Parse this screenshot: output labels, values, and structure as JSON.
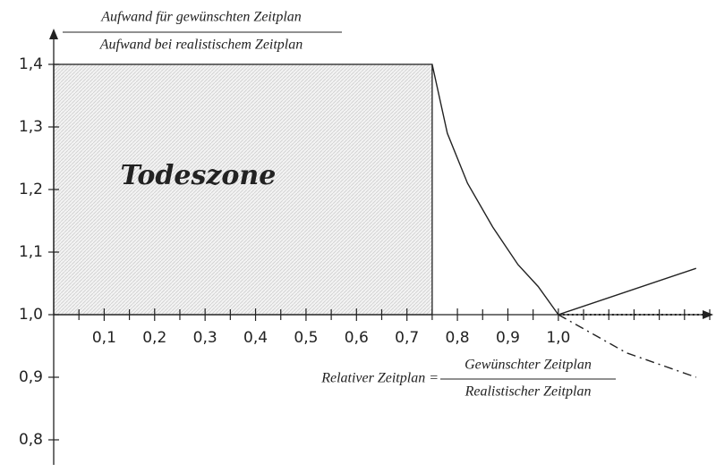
{
  "chart_data": {
    "type": "line",
    "ylabel": {
      "numerator": "Aufwand  für gewünschten Zeitplan",
      "denominator": "Aufwand bei realistischem Zeitplan"
    },
    "xlabel": {
      "prefix": "Relativer Zeitplan =",
      "numerator": "Gewünschter Zeitplan",
      "denominator": "Realistischer Zeitplan"
    },
    "zone": {
      "label": "Todeszone",
      "x": [
        0,
        0.75
      ],
      "y": [
        1.0,
        1.4
      ],
      "color": "#d9d9d9"
    },
    "xlim": [
      0,
      1.3
    ],
    "ylim": [
      0.76,
      1.44
    ],
    "xticks": [
      {
        "value": 0.1,
        "label": "0,1"
      },
      {
        "value": 0.2,
        "label": "0,2"
      },
      {
        "value": 0.3,
        "label": "0,3"
      },
      {
        "value": 0.4,
        "label": "0,4"
      },
      {
        "value": 0.5,
        "label": "0,5"
      },
      {
        "value": 0.6,
        "label": "0,6"
      },
      {
        "value": 0.7,
        "label": "0,7"
      },
      {
        "value": 0.8,
        "label": "0,8"
      },
      {
        "value": 0.9,
        "label": "0,9"
      },
      {
        "value": 1.0,
        "label": "1,0"
      }
    ],
    "xminorticks": [
      0.05,
      0.15,
      0.25,
      0.35,
      0.45,
      0.55,
      0.65,
      0.75,
      0.85,
      0.95,
      1.05,
      1.1,
      1.15,
      1.2,
      1.25,
      1.3
    ],
    "yticks": [
      {
        "value": 0.8,
        "label": "0,8"
      },
      {
        "value": 0.9,
        "label": "0,9"
      },
      {
        "value": 1.0,
        "label": "1,0"
      },
      {
        "value": 1.1,
        "label": "1,1"
      },
      {
        "value": 1.2,
        "label": "1,2"
      },
      {
        "value": 1.3,
        "label": "1,3"
      },
      {
        "value": 1.4,
        "label": "1,4"
      }
    ],
    "series": [
      {
        "style": "solid",
        "color": "#222",
        "x": [
          0.75,
          0.78,
          0.82,
          0.87,
          0.92,
          0.96,
          1.0
        ],
        "values": [
          1.4,
          1.29,
          1.21,
          1.14,
          1.08,
          1.045,
          1.0
        ]
      },
      {
        "style": "solid",
        "color": "#222",
        "x": [
          1.0,
          1.273
        ],
        "values": [
          1.0,
          1.074
        ]
      },
      {
        "style": "dash-dot",
        "color": "#222",
        "x": [
          1.0,
          1.135,
          1.273
        ],
        "values": [
          1.0,
          0.939,
          0.9
        ]
      },
      {
        "style": "dotted",
        "color": "#222",
        "x": [
          1.0,
          1.3
        ],
        "values": [
          1.0,
          1.0
        ]
      }
    ]
  }
}
